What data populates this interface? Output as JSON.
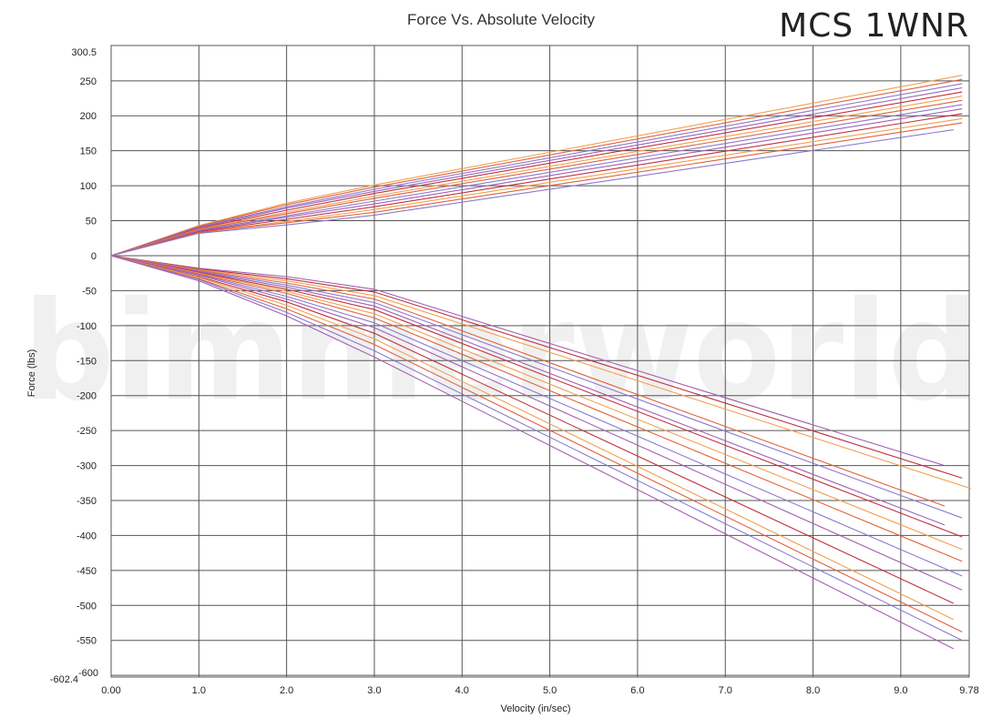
{
  "badge": "MCS 1WNR",
  "watermark": "bimmerworld",
  "chart_data": {
    "type": "line",
    "title": "Force Vs. Absolute Velocity",
    "xlabel": "Velocity (in/sec)",
    "ylabel": "Force (lbs)",
    "xlim": [
      0,
      9.78
    ],
    "ylim": [
      -602.4,
      300.5
    ],
    "x_ticks": [
      "0.00",
      "1.0",
      "2.0",
      "3.0",
      "4.0",
      "5.0",
      "6.0",
      "7.0",
      "8.0",
      "9.0",
      "9.78"
    ],
    "y_ticks": [
      "300.5",
      "250",
      "200",
      "150",
      "100",
      "50",
      "0",
      "-50",
      "-100",
      "-150",
      "-200",
      "-250",
      "-300",
      "-350",
      "-400",
      "-450",
      "-500",
      "-550",
      "-600",
      "-602.4"
    ],
    "grid": true,
    "series_colors": [
      "#f0a050",
      "#e0603a",
      "#8878d0",
      "#a060b0",
      "#c03040"
    ],
    "series": [
      {
        "x": [
          0,
          1,
          2,
          3,
          9.7
        ],
        "y": [
          0,
          43,
          75,
          101,
          258
        ]
      },
      {
        "x": [
          0,
          1,
          2,
          3,
          9.7
        ],
        "y": [
          0,
          42,
          73,
          98,
          252
        ]
      },
      {
        "x": [
          0,
          1,
          2,
          3,
          9.7
        ],
        "y": [
          0,
          41,
          70,
          95,
          246
        ]
      },
      {
        "x": [
          0,
          1,
          2,
          3,
          9.7
        ],
        "y": [
          0,
          40,
          68,
          92,
          240
        ]
      },
      {
        "x": [
          0,
          1,
          2,
          3,
          9.7
        ],
        "y": [
          0,
          39,
          65,
          89,
          234
        ]
      },
      {
        "x": [
          0,
          1,
          2,
          3,
          9.7
        ],
        "y": [
          0,
          38,
          62,
          85,
          228
        ]
      },
      {
        "x": [
          0,
          1,
          2,
          3,
          9.7
        ],
        "y": [
          0,
          37,
          60,
          82,
          222
        ]
      },
      {
        "x": [
          0,
          1,
          2,
          3,
          9.7
        ],
        "y": [
          0,
          36,
          57,
          78,
          216
        ]
      },
      {
        "x": [
          0,
          1,
          2,
          3,
          9.7
        ],
        "y": [
          0,
          35,
          55,
          74,
          210
        ]
      },
      {
        "x": [
          0,
          1,
          2,
          3,
          9.7
        ],
        "y": [
          0,
          34,
          52,
          70,
          203
        ]
      },
      {
        "x": [
          0,
          1,
          2,
          3,
          9.7
        ],
        "y": [
          0,
          33,
          49,
          66,
          196
        ]
      },
      {
        "x": [
          0,
          1,
          2,
          3,
          9.7
        ],
        "y": [
          0,
          33,
          47,
          62,
          190
        ]
      },
      {
        "x": [
          0,
          1,
          2,
          3,
          9.6
        ],
        "y": [
          0,
          32,
          44,
          58,
          180
        ]
      },
      {
        "x": [
          0,
          1,
          2,
          3,
          9.5
        ],
        "y": [
          0,
          -18,
          -30,
          -48,
          -300
        ]
      },
      {
        "x": [
          0,
          1,
          2,
          3,
          9.7
        ],
        "y": [
          0,
          -19,
          -33,
          -52,
          -318
        ]
      },
      {
        "x": [
          0,
          1,
          2,
          3,
          9.8
        ],
        "y": [
          0,
          -20,
          -36,
          -57,
          -333
        ]
      },
      {
        "x": [
          0,
          1,
          2,
          3,
          9.5
        ],
        "y": [
          0,
          -21,
          -39,
          -62,
          -358
        ]
      },
      {
        "x": [
          0,
          1,
          2,
          3,
          9.7
        ],
        "y": [
          0,
          -22,
          -42,
          -67,
          -375
        ]
      },
      {
        "x": [
          0,
          1,
          2,
          3,
          9.5
        ],
        "y": [
          0,
          -23,
          -45,
          -72,
          -385
        ]
      },
      {
        "x": [
          0,
          1,
          2,
          3,
          9.7
        ],
        "y": [
          0,
          -24,
          -48,
          -77,
          -402
        ]
      },
      {
        "x": [
          0,
          1,
          2,
          3,
          9.7
        ],
        "y": [
          0,
          -25,
          -51,
          -83,
          -420
        ]
      },
      {
        "x": [
          0,
          1,
          2,
          3,
          9.7
        ],
        "y": [
          0,
          -26,
          -54,
          -89,
          -437
        ]
      },
      {
        "x": [
          0,
          1,
          2,
          3,
          9.7
        ],
        "y": [
          0,
          -27,
          -58,
          -96,
          -458
        ]
      },
      {
        "x": [
          0,
          1,
          2,
          3,
          9.7
        ],
        "y": [
          0,
          -28,
          -62,
          -103,
          -478
        ]
      },
      {
        "x": [
          0,
          1,
          2,
          3,
          9.6
        ],
        "y": [
          0,
          -30,
          -66,
          -111,
          -497
        ]
      },
      {
        "x": [
          0,
          1,
          2,
          3,
          9.6
        ],
        "y": [
          0,
          -31,
          -71,
          -119,
          -520
        ]
      },
      {
        "x": [
          0,
          1,
          2,
          3,
          9.7
        ],
        "y": [
          0,
          -33,
          -76,
          -127,
          -538
        ]
      },
      {
        "x": [
          0,
          1,
          2,
          3,
          9.7
        ],
        "y": [
          0,
          -34,
          -81,
          -136,
          -550
        ]
      },
      {
        "x": [
          0,
          1,
          2,
          3,
          9.6
        ],
        "y": [
          0,
          -36,
          -86,
          -145,
          -562
        ]
      }
    ]
  }
}
